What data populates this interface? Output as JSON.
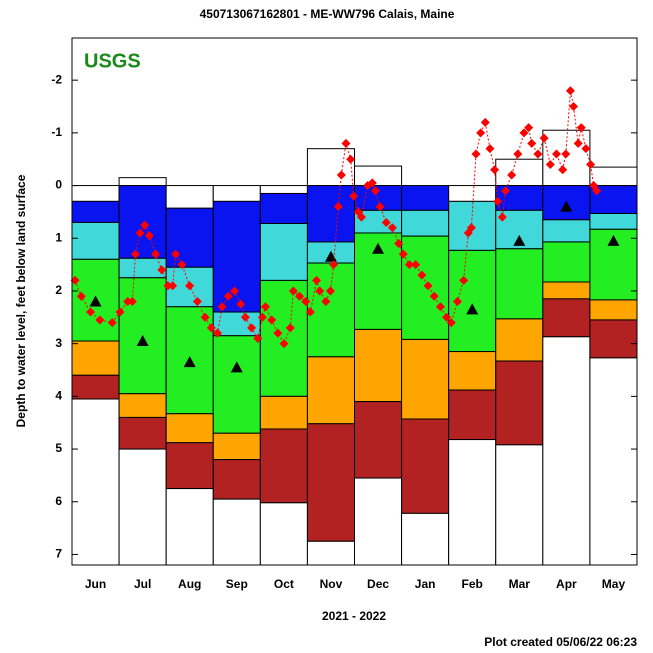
{
  "chart_data": {
    "type": "bar",
    "title": "450713067162801 - ME-WW796 Calais, Maine",
    "logo": "USGS",
    "ylabel": "Depth to water level, feet below land surface",
    "xlabel": "2021 - 2022",
    "footer": "Plot created 05/06/22 06:23",
    "categories": [
      "Jun",
      "Jul",
      "Aug",
      "Sep",
      "Oct",
      "Nov",
      "Dec",
      "Jan",
      "Feb",
      "Mar",
      "Apr",
      "May"
    ],
    "ylim": [
      -2.8,
      7.2
    ],
    "y_inverted": true,
    "yticks": [
      -2,
      -1,
      0,
      1,
      2,
      3,
      4,
      5,
      6,
      7
    ],
    "band_colors": [
      "#ffffff",
      "#0a14f0",
      "#40d8d8",
      "#22ee22",
      "#ffa500",
      "#b22222",
      "#ffffff"
    ],
    "band_edges": [
      [
        0,
        -0.15,
        0,
        0,
        0,
        -0.7,
        -0.37,
        0,
        0,
        -0.5,
        -1.05,
        -0.35
      ],
      [
        0.3,
        0,
        0.43,
        0.3,
        0.15,
        0,
        0,
        0,
        0.3,
        0,
        0,
        0
      ],
      [
        0.7,
        1.38,
        1.55,
        2.4,
        0.72,
        1.07,
        0.47,
        0.47,
        0.3,
        0.47,
        0.65,
        0.53
      ],
      [
        1.4,
        1.75,
        2.3,
        2.85,
        1.8,
        1.47,
        0.9,
        0.96,
        1.23,
        1.2,
        1.07,
        0.83
      ],
      [
        2.95,
        3.95,
        4.33,
        4.7,
        4.0,
        3.25,
        2.73,
        2.92,
        3.15,
        2.53,
        1.83,
        2.17
      ],
      [
        3.6,
        4.4,
        4.88,
        5.2,
        4.62,
        4.52,
        4.1,
        4.43,
        3.88,
        3.33,
        2.15,
        2.55
      ],
      [
        4.05,
        5.0,
        5.75,
        5.95,
        6.02,
        6.75,
        5.55,
        6.22,
        4.82,
        4.92,
        2.87,
        3.27
      ]
    ],
    "medians": {
      "color": "#000000",
      "values": [
        2.2,
        2.95,
        3.35,
        3.45,
        null,
        1.35,
        1.2,
        null,
        2.35,
        1.05,
        0.4,
        1.05
      ]
    },
    "daily": {
      "color": "#ff0000",
      "xlim": [
        0,
        365
      ],
      "x": [
        2,
        6,
        12,
        18,
        26,
        31,
        36,
        39,
        41,
        44,
        47,
        50,
        54,
        58,
        62,
        65,
        67,
        71,
        76,
        81,
        86,
        90,
        94,
        97,
        101,
        105,
        109,
        112,
        116,
        120,
        123,
        125,
        129,
        133,
        137,
        141,
        143,
        147,
        151,
        154,
        158,
        160,
        164,
        167,
        169,
        172,
        174,
        177,
        180,
        182,
        185,
        187,
        191,
        194,
        196,
        199,
        203,
        207,
        211,
        214,
        218,
        222,
        226,
        230,
        234,
        238,
        242,
        245,
        249,
        253,
        256,
        258,
        261,
        264,
        267,
        270,
        273,
        275,
        278,
        280,
        284,
        288,
        292,
        295,
        297,
        301,
        305,
        309,
        313,
        317,
        319,
        322,
        324,
        327,
        329,
        332,
        335,
        337,
        339
      ],
      "values": [
        1.8,
        2.1,
        2.4,
        2.55,
        2.6,
        2.4,
        2.2,
        2.2,
        1.3,
        0.9,
        0.75,
        0.95,
        1.3,
        1.6,
        1.9,
        1.9,
        1.3,
        1.5,
        1.9,
        2.2,
        2.5,
        2.7,
        2.8,
        2.3,
        2.1,
        2.0,
        2.25,
        2.5,
        2.7,
        2.9,
        2.5,
        2.3,
        2.55,
        2.8,
        3.0,
        2.7,
        2.0,
        2.1,
        2.2,
        2.4,
        1.8,
        2.0,
        2.2,
        2.0,
        1.5,
        0.4,
        -0.2,
        -0.8,
        -0.5,
        0.2,
        0.5,
        0.6,
        0.0,
        -0.05,
        0.1,
        0.4,
        0.7,
        0.8,
        1.1,
        1.3,
        1.5,
        1.5,
        1.7,
        1.9,
        2.1,
        2.3,
        2.5,
        2.6,
        2.2,
        1.8,
        0.9,
        0.8,
        -0.6,
        -1.0,
        -1.2,
        -0.7,
        -0.3,
        0.3,
        0.6,
        0.1,
        -0.2,
        -0.6,
        -1.0,
        -1.1,
        -0.8,
        -0.6,
        -0.9,
        -0.4,
        -0.6,
        -0.3,
        -0.6,
        -1.8,
        -1.5,
        -0.8,
        -1.1,
        -0.7,
        -0.4,
        0.0,
        0.1
      ]
    }
  }
}
